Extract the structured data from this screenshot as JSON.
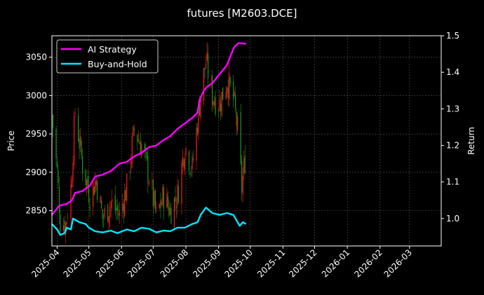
{
  "title": "futures [M2603.DCE]",
  "colors": {
    "background": "#000000",
    "axes": "#ffffff",
    "grid": "#555555",
    "candle_up": "#ff1a1a",
    "candle_down": "#1a9a1a",
    "ai_strategy": "#ff00ff",
    "buy_and_hold": "#00e5ff"
  },
  "chart_data": {
    "type": "line",
    "title": "futures [M2603.DCE]",
    "ylabel_left": "Price",
    "ylabel_right": "Return",
    "xlim": [
      "2025-03-27",
      "2026-03-31"
    ],
    "ylim_left": [
      2804,
      3078
    ],
    "ylim_right": [
      0.925,
      1.5
    ],
    "x_ticks": [
      "2025-04",
      "2025-05",
      "2025-06",
      "2025-07",
      "2025-08",
      "2025-09",
      "2025-10",
      "2025-11",
      "2025-12",
      "2026-01",
      "2026-02",
      "2026-03"
    ],
    "y_ticks_left": [
      2850,
      2900,
      2950,
      3000,
      3050
    ],
    "y_ticks_right": [
      1.0,
      1.1,
      1.2,
      1.3,
      1.4,
      1.5
    ],
    "grid": true,
    "legend_position": "top-left",
    "price_keypoints": [
      {
        "x": "2025-03-27",
        "close": 2975
      },
      {
        "x": "2025-04-01",
        "close": 2900
      },
      {
        "x": "2025-04-04",
        "close": 2838
      },
      {
        "x": "2025-04-09",
        "close": 2832
      },
      {
        "x": "2025-04-14",
        "close": 2880
      },
      {
        "x": "2025-04-18",
        "close": 2980
      },
      {
        "x": "2025-04-25",
        "close": 2910
      },
      {
        "x": "2025-05-02",
        "close": 2870
      },
      {
        "x": "2025-05-08",
        "close": 2890
      },
      {
        "x": "2025-05-14",
        "close": 2840
      },
      {
        "x": "2025-05-22",
        "close": 2860
      },
      {
        "x": "2025-05-30",
        "close": 2845
      },
      {
        "x": "2025-06-06",
        "close": 2880
      },
      {
        "x": "2025-06-13",
        "close": 2955
      },
      {
        "x": "2025-06-20",
        "close": 2935
      },
      {
        "x": "2025-06-27",
        "close": 2895
      },
      {
        "x": "2025-07-04",
        "close": 2842
      },
      {
        "x": "2025-07-11",
        "close": 2870
      },
      {
        "x": "2025-07-17",
        "close": 2850
      },
      {
        "x": "2025-07-24",
        "close": 2870
      },
      {
        "x": "2025-07-31",
        "close": 2935
      },
      {
        "x": "2025-08-07",
        "close": 2905
      },
      {
        "x": "2025-08-14",
        "close": 2990
      },
      {
        "x": "2025-08-20",
        "close": 3045
      },
      {
        "x": "2025-08-26",
        "close": 3000
      },
      {
        "x": "2025-09-02",
        "close": 2990
      },
      {
        "x": "2025-09-09",
        "close": 3020
      },
      {
        "x": "2025-09-15",
        "close": 2995
      },
      {
        "x": "2025-09-19",
        "close": 2955
      },
      {
        "x": "2025-09-23",
        "close": 2880
      },
      {
        "x": "2025-09-27",
        "close": 2930
      }
    ],
    "series": [
      {
        "name": "AI Strategy",
        "points": [
          {
            "x": "2025-03-27",
            "y": 1.01
          },
          {
            "x": "2025-04-03",
            "y": 1.035
          },
          {
            "x": "2025-04-10",
            "y": 1.04
          },
          {
            "x": "2025-04-15",
            "y": 1.05
          },
          {
            "x": "2025-04-18",
            "y": 1.07
          },
          {
            "x": "2025-04-25",
            "y": 1.075
          },
          {
            "x": "2025-05-02",
            "y": 1.09
          },
          {
            "x": "2025-05-07",
            "y": 1.115
          },
          {
            "x": "2025-05-14",
            "y": 1.12
          },
          {
            "x": "2025-05-22",
            "y": 1.13
          },
          {
            "x": "2025-05-30",
            "y": 1.15
          },
          {
            "x": "2025-06-06",
            "y": 1.155
          },
          {
            "x": "2025-06-13",
            "y": 1.17
          },
          {
            "x": "2025-06-20",
            "y": 1.18
          },
          {
            "x": "2025-06-27",
            "y": 1.195
          },
          {
            "x": "2025-07-04",
            "y": 1.2
          },
          {
            "x": "2025-07-11",
            "y": 1.215
          },
          {
            "x": "2025-07-17",
            "y": 1.225
          },
          {
            "x": "2025-07-24",
            "y": 1.245
          },
          {
            "x": "2025-07-31",
            "y": 1.26
          },
          {
            "x": "2025-08-07",
            "y": 1.275
          },
          {
            "x": "2025-08-12",
            "y": 1.29
          },
          {
            "x": "2025-08-14",
            "y": 1.325
          },
          {
            "x": "2025-08-18",
            "y": 1.35
          },
          {
            "x": "2025-08-21",
            "y": 1.36
          },
          {
            "x": "2025-08-26",
            "y": 1.37
          },
          {
            "x": "2025-09-02",
            "y": 1.395
          },
          {
            "x": "2025-09-09",
            "y": 1.42
          },
          {
            "x": "2025-09-13",
            "y": 1.45
          },
          {
            "x": "2025-09-16",
            "y": 1.47
          },
          {
            "x": "2025-09-20",
            "y": 1.48
          },
          {
            "x": "2025-09-27",
            "y": 1.478
          }
        ]
      },
      {
        "name": "Buy-and-Hold",
        "points": [
          {
            "x": "2025-03-27",
            "y": 0.985
          },
          {
            "x": "2025-04-01",
            "y": 0.97
          },
          {
            "x": "2025-04-04",
            "y": 0.955
          },
          {
            "x": "2025-04-08",
            "y": 0.96
          },
          {
            "x": "2025-04-10",
            "y": 0.975
          },
          {
            "x": "2025-04-14",
            "y": 0.97
          },
          {
            "x": "2025-04-16",
            "y": 1.0
          },
          {
            "x": "2025-04-22",
            "y": 0.99
          },
          {
            "x": "2025-04-28",
            "y": 0.985
          },
          {
            "x": "2025-05-01",
            "y": 0.975
          },
          {
            "x": "2025-05-07",
            "y": 0.965
          },
          {
            "x": "2025-05-14",
            "y": 0.962
          },
          {
            "x": "2025-05-22",
            "y": 0.967
          },
          {
            "x": "2025-05-28",
            "y": 0.96
          },
          {
            "x": "2025-06-06",
            "y": 0.97
          },
          {
            "x": "2025-06-13",
            "y": 0.965
          },
          {
            "x": "2025-06-20",
            "y": 0.975
          },
          {
            "x": "2025-06-27",
            "y": 0.972
          },
          {
            "x": "2025-07-04",
            "y": 0.962
          },
          {
            "x": "2025-07-11",
            "y": 0.967
          },
          {
            "x": "2025-07-17",
            "y": 0.965
          },
          {
            "x": "2025-07-24",
            "y": 0.975
          },
          {
            "x": "2025-07-31",
            "y": 0.975
          },
          {
            "x": "2025-08-07",
            "y": 0.985
          },
          {
            "x": "2025-08-12",
            "y": 0.99
          },
          {
            "x": "2025-08-15",
            "y": 1.01
          },
          {
            "x": "2025-08-20",
            "y": 1.03
          },
          {
            "x": "2025-08-26",
            "y": 1.015
          },
          {
            "x": "2025-09-02",
            "y": 1.01
          },
          {
            "x": "2025-09-09",
            "y": 1.015
          },
          {
            "x": "2025-09-15",
            "y": 1.01
          },
          {
            "x": "2025-09-18",
            "y": 0.995
          },
          {
            "x": "2025-09-21",
            "y": 0.98
          },
          {
            "x": "2025-09-24",
            "y": 0.99
          },
          {
            "x": "2025-09-27",
            "y": 0.985
          }
        ]
      }
    ]
  }
}
